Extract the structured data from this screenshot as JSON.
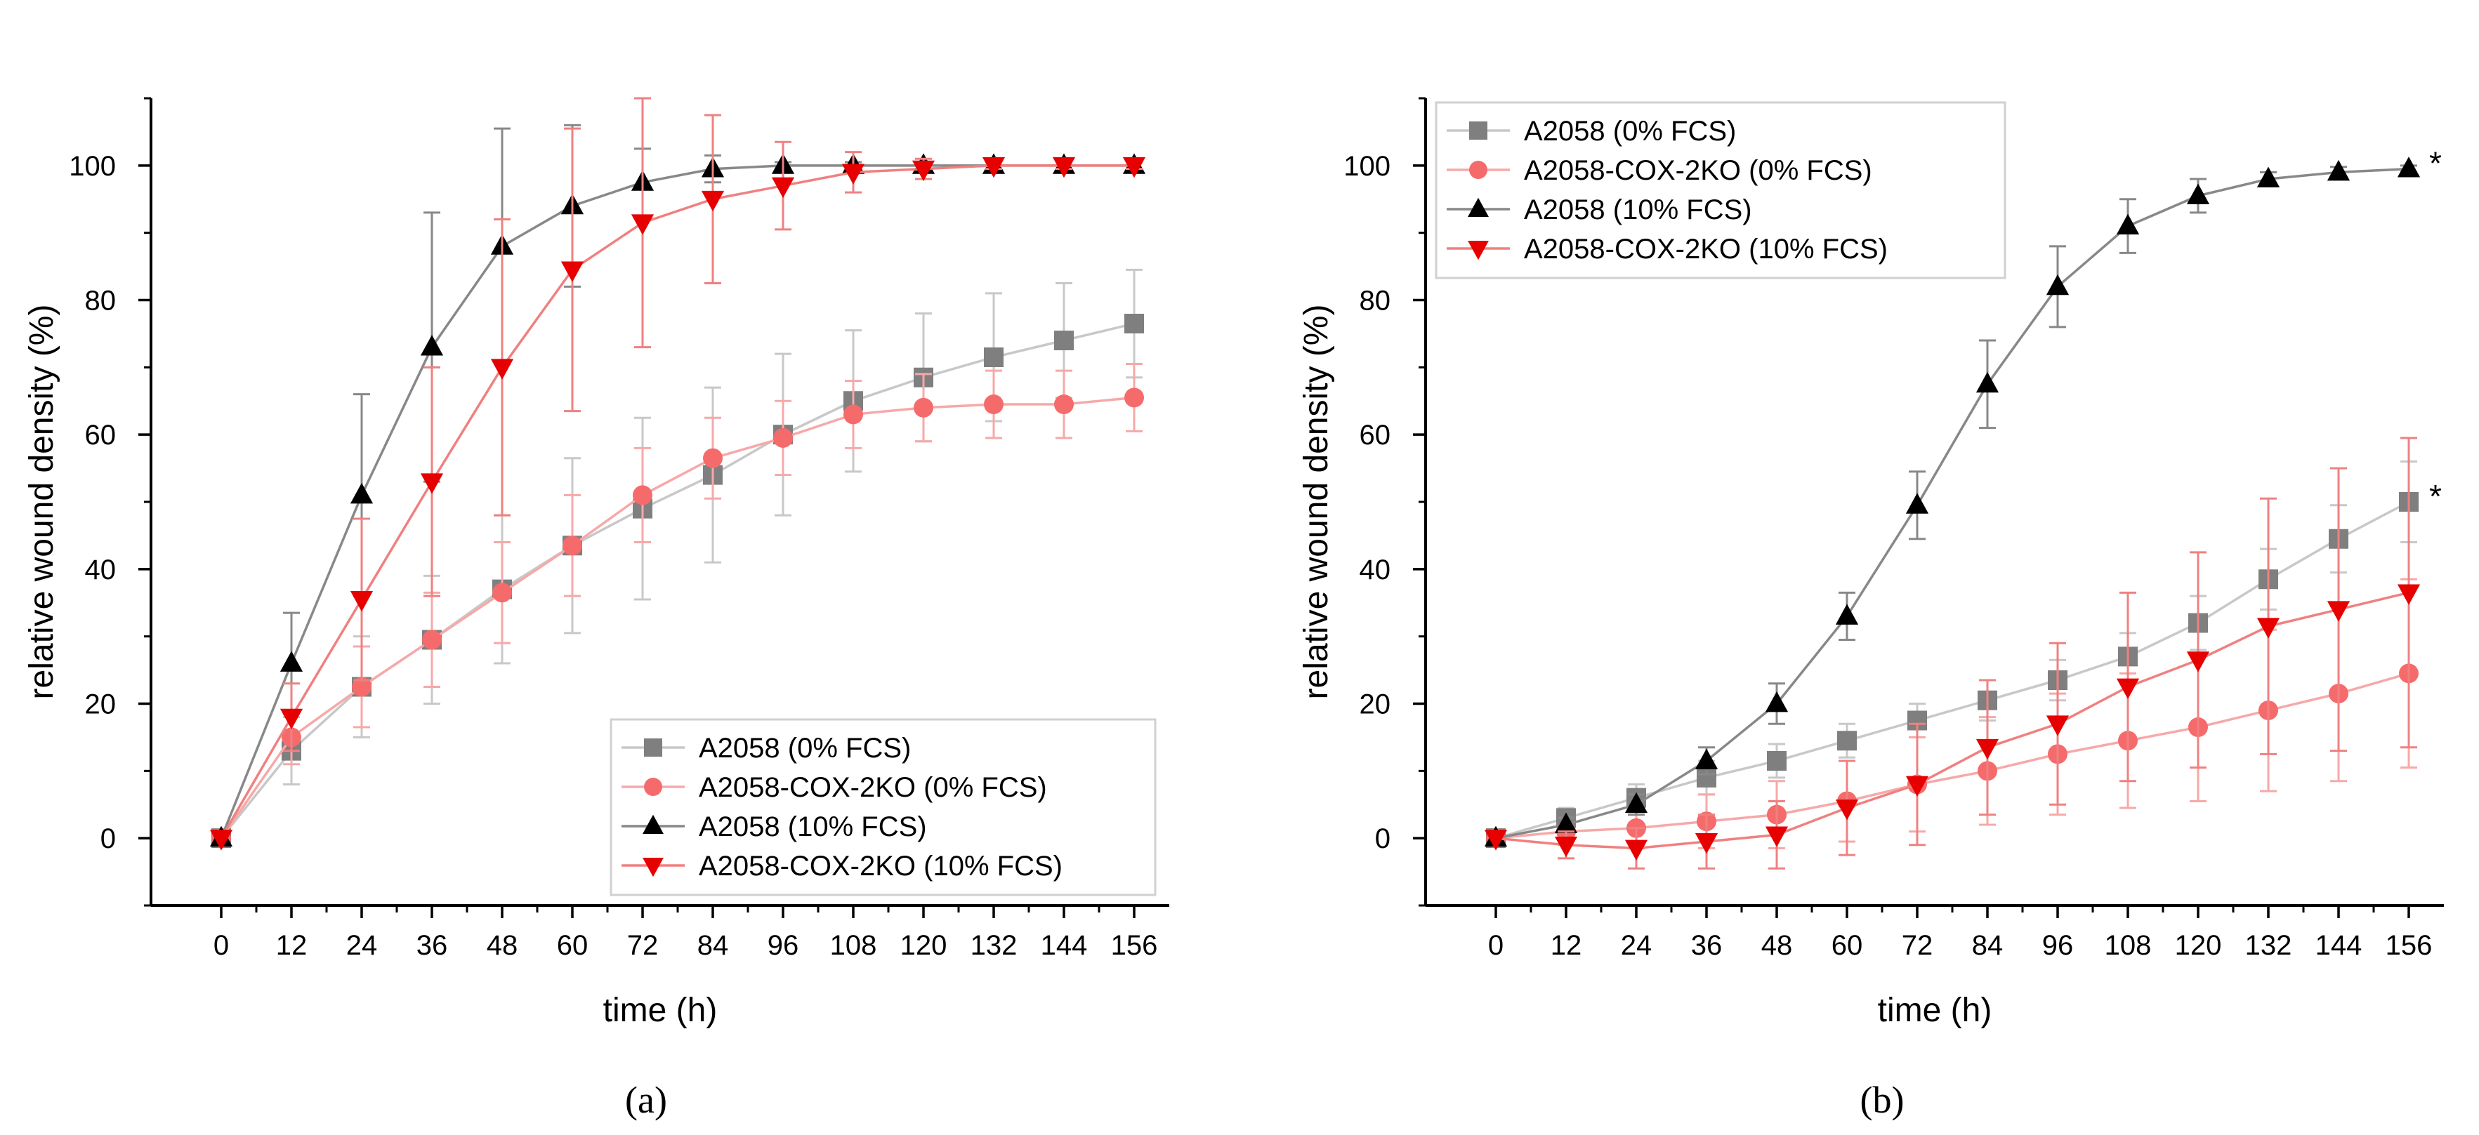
{
  "chart_data": [
    {
      "type": "line",
      "caption": "(a)",
      "xlabel": "time (h)",
      "ylabel": "relative wound density (%)",
      "xlim": [
        -12,
        162
      ],
      "ylim": [
        -10,
        110
      ],
      "xticks": [
        0,
        12,
        24,
        36,
        48,
        60,
        72,
        84,
        96,
        108,
        120,
        132,
        144,
        156
      ],
      "yticks": [
        0,
        20,
        40,
        60,
        80,
        100
      ],
      "grid": false,
      "legend_position": "bottom-right",
      "x": [
        0,
        12,
        24,
        36,
        48,
        60,
        72,
        84,
        96,
        108,
        120,
        132,
        144,
        156
      ],
      "series": [
        {
          "name": "A2058 (0% FCS)",
          "color": "#7f7f7f",
          "line_color": "#c8c8c8",
          "marker": "square",
          "values": [
            0,
            13,
            22.5,
            29.5,
            37,
            43.5,
            49,
            54,
            60,
            65,
            68.5,
            71.5,
            74,
            76.5
          ],
          "errors": [
            0,
            5,
            7.5,
            9.5,
            11,
            13,
            13.5,
            13,
            12,
            10.5,
            9.5,
            9.5,
            8.5,
            8
          ]
        },
        {
          "name": "A2058-COX-2KO (0% FCS)",
          "color": "#f56b6b",
          "line_color": "#f7a8a8",
          "marker": "circle",
          "values": [
            0,
            15,
            22.5,
            29.5,
            36.5,
            43.5,
            51,
            56.5,
            59.5,
            63,
            64,
            64.5,
            64.5,
            65.5
          ],
          "errors": [
            0,
            4,
            6,
            7,
            7.5,
            7.5,
            7,
            6,
            5.5,
            5,
            5,
            5,
            5,
            5
          ]
        },
        {
          "name": "A2058 (10% FCS)",
          "color": "#000000",
          "line_color": "#888888",
          "marker": "triangle-up",
          "values": [
            0,
            26,
            51,
            73,
            88,
            94,
            97.5,
            99.5,
            100,
            100,
            100,
            100,
            100,
            100
          ],
          "errors": [
            0,
            7.5,
            15,
            20,
            17.5,
            12,
            5,
            2,
            0.5,
            0.5,
            0.5,
            0.5,
            0.5,
            0.5
          ]
        },
        {
          "name": "A2058-COX-2KO (10% FCS)",
          "color": "#e60000",
          "line_color": "#f08080",
          "marker": "triangle-down",
          "values": [
            0,
            18,
            35.5,
            53,
            70,
            84.5,
            91.5,
            95,
            97,
            99,
            99.5,
            100,
            100,
            100
          ],
          "errors": [
            0,
            5,
            12,
            17,
            22,
            21,
            18.5,
            12.5,
            6.5,
            3,
            1.5,
            0.5,
            0.5,
            0.5
          ]
        }
      ],
      "legend": [
        "A2058 (0% FCS)",
        "A2058-COX-2KO (0% FCS)",
        "A2058 (10% FCS)",
        "A2058-COX-2KO (10% FCS)"
      ],
      "annotations": []
    },
    {
      "type": "line",
      "caption": "(b)",
      "xlabel": "time (h)",
      "ylabel": "relative wound density (%)",
      "xlim": [
        -12,
        162
      ],
      "ylim": [
        -10,
        110
      ],
      "xticks": [
        0,
        12,
        24,
        36,
        48,
        60,
        72,
        84,
        96,
        108,
        120,
        132,
        144,
        156
      ],
      "yticks": [
        0,
        20,
        40,
        60,
        80,
        100
      ],
      "grid": false,
      "legend_position": "top-left",
      "x": [
        0,
        12,
        24,
        36,
        48,
        60,
        72,
        84,
        96,
        108,
        120,
        132,
        144,
        156
      ],
      "series": [
        {
          "name": "A2058 (0% FCS)",
          "color": "#7f7f7f",
          "line_color": "#c8c8c8",
          "marker": "square",
          "values": [
            0,
            3,
            6,
            9,
            11.5,
            14.5,
            17.5,
            20.5,
            23.5,
            27,
            32,
            38.5,
            44.5,
            50
          ],
          "errors": [
            0,
            1.5,
            2,
            2.5,
            2.5,
            2.5,
            2.5,
            3,
            3,
            3.5,
            4,
            4.5,
            5,
            6
          ]
        },
        {
          "name": "A2058-COX-2KO (0% FCS)",
          "color": "#f56b6b",
          "line_color": "#f7a8a8",
          "marker": "circle",
          "values": [
            0,
            1,
            1.5,
            2.5,
            3.5,
            5.5,
            8,
            10,
            12.5,
            14.5,
            16.5,
            19,
            21.5,
            24.5
          ],
          "errors": [
            0,
            2,
            3,
            4,
            5,
            6,
            7,
            8,
            9,
            10,
            11,
            12,
            13,
            14
          ]
        },
        {
          "name": "A2058 (10% FCS)",
          "color": "#000000",
          "line_color": "#888888",
          "marker": "triangle-up",
          "values": [
            0,
            2,
            5,
            11.5,
            20,
            33,
            49.5,
            67.5,
            82,
            91,
            95.5,
            98,
            99,
            99.5
          ],
          "errors": [
            0,
            1,
            1.5,
            2,
            3,
            3.5,
            5,
            6.5,
            6,
            4,
            2.5,
            1,
            0.8,
            0.5
          ]
        },
        {
          "name": "A2058-COX-2KO (10% FCS)",
          "color": "#e60000",
          "line_color": "#f08080",
          "marker": "triangle-down",
          "values": [
            0,
            -1,
            -1.5,
            -0.5,
            0.5,
            4.5,
            8,
            13.5,
            17,
            22.5,
            26.5,
            31.5,
            34,
            36.5
          ],
          "errors": [
            0,
            2,
            3,
            4,
            5,
            7,
            9,
            10,
            12,
            14,
            16,
            19,
            21,
            23
          ]
        }
      ],
      "legend": [
        "A2058 (0% FCS)",
        "A2058-COX-2KO (0% FCS)",
        "A2058 (10% FCS)",
        "A2058-COX-2KO (10% FCS)"
      ],
      "annotations": [
        {
          "text": "*",
          "x": 156,
          "y": 99.5
        },
        {
          "text": "*",
          "x": 156,
          "y": 50
        }
      ]
    }
  ]
}
